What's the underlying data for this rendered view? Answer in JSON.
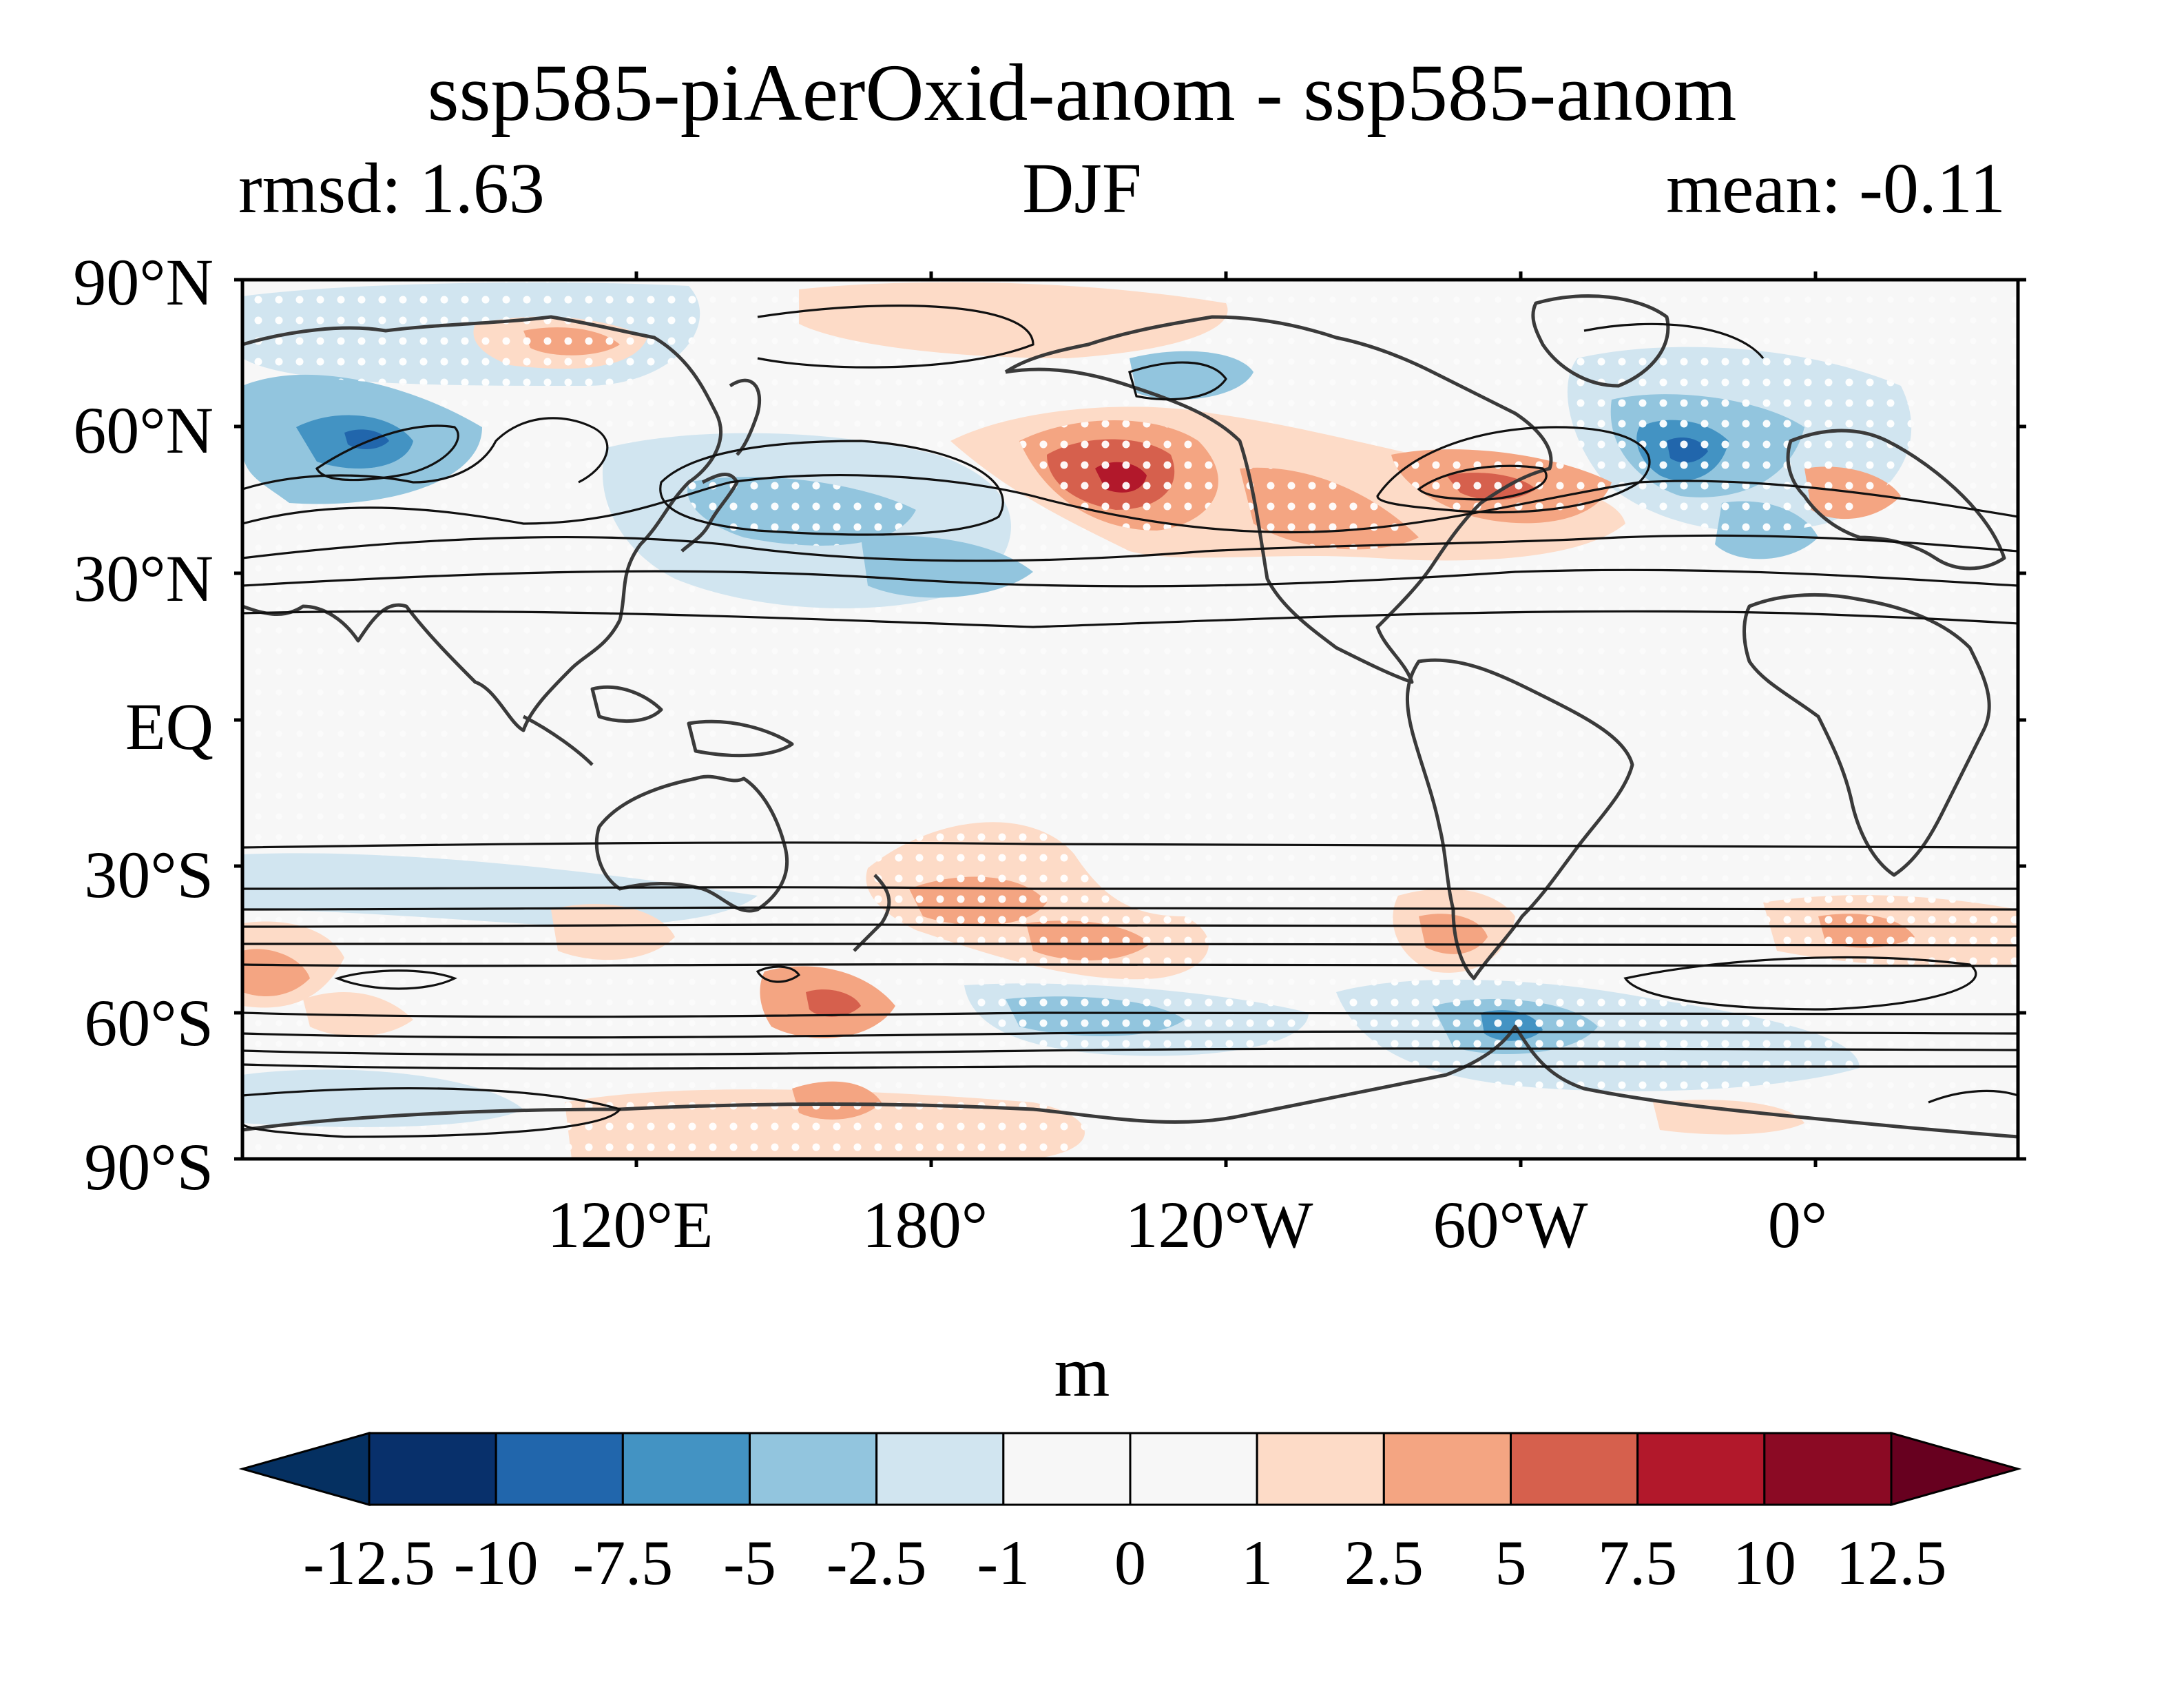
{
  "title": "ssp585-piAerOxid-anom - ssp585-anom",
  "subtitle_left": "rmsd: 1.63",
  "subtitle_center": "DJF",
  "subtitle_right": "mean: -0.11",
  "lat_labels": [
    "90°N",
    "60°N",
    "30°N",
    "EQ",
    "30°S",
    "60°S",
    "90°S"
  ],
  "lon_labels": [
    "120°E",
    "180°",
    "120°W",
    "60°W",
    "0°"
  ],
  "colorbar": {
    "units": "m",
    "levels": [
      "-12.5",
      "-10",
      "-7.5",
      "-5",
      "-2.5",
      "-1",
      "0",
      "1",
      "2.5",
      "5",
      "7.5",
      "10",
      "12.5"
    ],
    "colors": [
      "#053061",
      "#08306b",
      "#2166ac",
      "#4393c3",
      "#92c5de",
      "#d1e5f0",
      "#f7f7f7",
      "#f7f7f7",
      "#fddbc7",
      "#f4a582",
      "#d6604d",
      "#b2182b",
      "#8b0a24",
      "#67001f"
    ]
  },
  "palette": {
    "background": "#f7f7f7",
    "coast": "#3a3a3a",
    "contour": "#111111",
    "stipple": "#ffffff"
  }
}
